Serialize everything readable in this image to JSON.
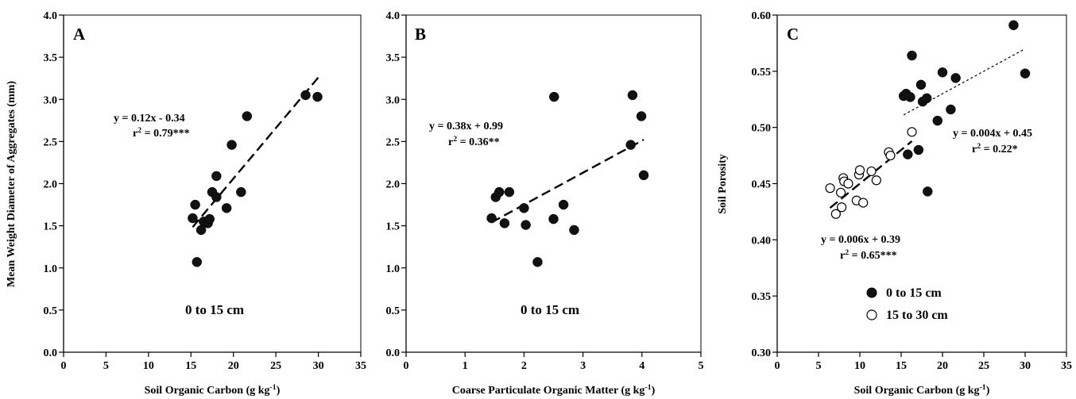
{
  "chart_data": [
    {
      "id": "A",
      "type": "scatter",
      "panel_label": "A",
      "xlabel": "Soil  Organic  Carbon (g kg⁻¹)",
      "ylabel": "Mean Weight Diameter of Aggregates (mm)",
      "xlim": [
        0,
        35
      ],
      "ylim": [
        0,
        4
      ],
      "xticks": [
        0,
        5,
        10,
        15,
        20,
        25,
        30,
        35
      ],
      "yticks": [
        0.0,
        0.5,
        1.0,
        1.5,
        2.0,
        2.5,
        3.0,
        3.5,
        4.0
      ],
      "ytick_decimals": 1,
      "grid": false,
      "series": [
        {
          "marker": "filled",
          "points": [
            [
              15.2,
              1.59
            ],
            [
              15.5,
              1.75
            ],
            [
              15.7,
              1.07
            ],
            [
              16.2,
              1.45
            ],
            [
              16.5,
              1.55
            ],
            [
              17.0,
              1.53
            ],
            [
              17.2,
              1.58
            ],
            [
              17.5,
              1.9
            ],
            [
              18.0,
              1.84
            ],
            [
              18.0,
              2.09
            ],
            [
              19.2,
              1.71
            ],
            [
              19.8,
              2.46
            ],
            [
              20.9,
              1.9
            ],
            [
              21.6,
              2.8
            ],
            [
              28.5,
              3.05
            ],
            [
              29.9,
              3.03
            ]
          ]
        }
      ],
      "fits": [
        {
          "style": "dashed",
          "slope": 0.12,
          "intercept": -0.34,
          "x_range": [
            15.2,
            30.0
          ]
        }
      ],
      "annotations": [
        {
          "lines": [
            "y = 0.12x - 0.34",
            "r² = 0.79***"
          ]
        },
        {
          "lines": [
            "0 to 15 cm"
          ]
        }
      ]
    },
    {
      "id": "B",
      "type": "scatter",
      "panel_label": "B",
      "xlabel": "Coarse Particulate Organic Matter (g kg⁻¹)",
      "ylabel": "",
      "xlim": [
        0,
        5
      ],
      "ylim": [
        0,
        4
      ],
      "xticks": [
        0,
        1,
        2,
        3,
        4,
        5
      ],
      "yticks": [
        0.0,
        0.5,
        1.0,
        1.5,
        2.0,
        2.5,
        3.0,
        3.5,
        4.0
      ],
      "ytick_decimals": 1,
      "grid": false,
      "series": [
        {
          "marker": "filled",
          "points": [
            [
              1.45,
              1.59
            ],
            [
              1.52,
              1.84
            ],
            [
              1.58,
              1.9
            ],
            [
              1.67,
              1.53
            ],
            [
              1.75,
              1.9
            ],
            [
              2.0,
              1.71
            ],
            [
              2.03,
              1.51
            ],
            [
              2.23,
              1.07
            ],
            [
              2.5,
              1.58
            ],
            [
              2.51,
              3.03
            ],
            [
              2.67,
              1.75
            ],
            [
              2.85,
              1.45
            ],
            [
              3.81,
              2.46
            ],
            [
              3.84,
              3.05
            ],
            [
              3.99,
              2.8
            ],
            [
              4.03,
              2.1
            ]
          ]
        }
      ],
      "fits": [
        {
          "style": "dashed",
          "slope": 0.38,
          "intercept": 0.99,
          "x_range": [
            1.45,
            4.03
          ]
        }
      ],
      "annotations": [
        {
          "lines": [
            "y = 0.38x + 0.99",
            "r² = 0.36**"
          ]
        },
        {
          "lines": [
            "0 to 15 cm"
          ]
        }
      ]
    },
    {
      "id": "C",
      "type": "scatter",
      "panel_label": "C",
      "xlabel": "Soil  Organic  Carbon (g kg⁻¹)",
      "ylabel": "Soil Porosity",
      "xlim": [
        0,
        35
      ],
      "ylim": [
        0.3,
        0.6
      ],
      "xticks": [
        0,
        5,
        10,
        15,
        20,
        25,
        30,
        35
      ],
      "yticks": [
        0.3,
        0.35,
        0.4,
        0.45,
        0.5,
        0.55,
        0.6
      ],
      "ytick_decimals": 2,
      "grid": false,
      "series": [
        {
          "name": "0 to 15 cm",
          "marker": "filled",
          "points": [
            [
              15.3,
              0.528
            ],
            [
              15.6,
              0.53
            ],
            [
              15.8,
              0.476
            ],
            [
              16.1,
              0.527
            ],
            [
              16.3,
              0.564
            ],
            [
              17.1,
              0.48
            ],
            [
              17.4,
              0.538
            ],
            [
              17.6,
              0.523
            ],
            [
              18.1,
              0.526
            ],
            [
              18.2,
              0.443
            ],
            [
              19.4,
              0.506
            ],
            [
              20.0,
              0.549
            ],
            [
              21.0,
              0.516
            ],
            [
              21.6,
              0.544
            ],
            [
              28.6,
              0.591
            ],
            [
              30.0,
              0.548
            ]
          ]
        },
        {
          "name": "15 to 30 cm",
          "marker": "open",
          "points": [
            [
              6.4,
              0.446
            ],
            [
              7.1,
              0.423
            ],
            [
              7.7,
              0.442
            ],
            [
              7.8,
              0.429
            ],
            [
              8.0,
              0.455
            ],
            [
              8.1,
              0.452
            ],
            [
              8.6,
              0.45
            ],
            [
              9.6,
              0.435
            ],
            [
              9.9,
              0.458
            ],
            [
              10.0,
              0.462
            ],
            [
              10.4,
              0.433
            ],
            [
              11.4,
              0.461
            ],
            [
              12.0,
              0.453
            ],
            [
              13.5,
              0.478
            ],
            [
              13.7,
              0.475
            ],
            [
              16.3,
              0.496
            ]
          ]
        }
      ],
      "fits": [
        {
          "style": "dashed",
          "slope": 0.006,
          "intercept": 0.39,
          "x_range": [
            6.4,
            16.3
          ]
        },
        {
          "style": "dotted",
          "slope": 0.004,
          "intercept": 0.45,
          "x_range": [
            15.3,
            30.0
          ]
        }
      ],
      "annotations": [
        {
          "lines": [
            "y = 0.004x + 0.45",
            "r² = 0.22*"
          ]
        },
        {
          "lines": [
            "y = 0.006x + 0.39",
            "r² = 0.65***"
          ]
        }
      ],
      "legend": {
        "position": "bottom-left"
      }
    }
  ]
}
